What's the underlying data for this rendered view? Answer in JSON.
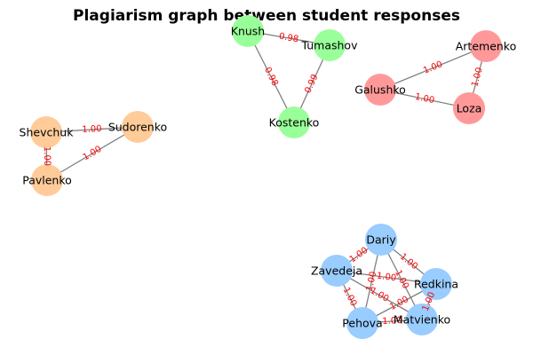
{
  "title": "Plagiarism graph between student responses",
  "groups": [
    {
      "id": "orange",
      "color": "#ffcc99"
    },
    {
      "id": "green",
      "color": "#99ff99"
    },
    {
      "id": "red",
      "color": "#ff9999"
    },
    {
      "id": "blue",
      "color": "#99ccff"
    }
  ],
  "nodes": [
    {
      "id": "Knush",
      "label": "Knush",
      "group": "green"
    },
    {
      "id": "Tumashov",
      "label": "Tumashov",
      "group": "green"
    },
    {
      "id": "Kostenko",
      "label": "Kostenko",
      "group": "green"
    },
    {
      "id": "Artemenko",
      "label": "Artemenko",
      "group": "red"
    },
    {
      "id": "Galushko",
      "label": "Galushko",
      "group": "red"
    },
    {
      "id": "Loza",
      "label": "Loza",
      "group": "red"
    },
    {
      "id": "Shevchuk",
      "label": "Shevchuk",
      "group": "orange"
    },
    {
      "id": "Sudorenko",
      "label": "Sudorenko",
      "group": "orange"
    },
    {
      "id": "Pavlenko",
      "label": "Pavlenko",
      "group": "orange"
    },
    {
      "id": "Dariy",
      "label": "Dariy",
      "group": "blue"
    },
    {
      "id": "Zavedeja",
      "label": "Zavedeja",
      "group": "blue"
    },
    {
      "id": "Redkina",
      "label": "Redkina",
      "group": "blue"
    },
    {
      "id": "Pehova",
      "label": "Pehova",
      "group": "blue"
    },
    {
      "id": "Matvienko",
      "label": "Matvienko",
      "group": "blue"
    }
  ],
  "edges": [
    {
      "source": "Knush",
      "target": "Tumashov",
      "weight": "0.98"
    },
    {
      "source": "Knush",
      "target": "Kostenko",
      "weight": "0.98"
    },
    {
      "source": "Tumashov",
      "target": "Kostenko",
      "weight": "0.99"
    },
    {
      "source": "Galushko",
      "target": "Artemenko",
      "weight": "1.00"
    },
    {
      "source": "Artemenko",
      "target": "Loza",
      "weight": "1.00"
    },
    {
      "source": "Galushko",
      "target": "Loza",
      "weight": "1.00"
    },
    {
      "source": "Shevchuk",
      "target": "Sudorenko",
      "weight": "1.00"
    },
    {
      "source": "Pavlenko",
      "target": "Sudorenko",
      "weight": "1.00"
    },
    {
      "source": "Shevchuk",
      "target": "Pavlenko",
      "weight": "1.00"
    },
    {
      "source": "Dariy",
      "target": "Zavedeja",
      "weight": "1.00"
    },
    {
      "source": "Dariy",
      "target": "Redkina",
      "weight": "1.00"
    },
    {
      "source": "Dariy",
      "target": "Pehova",
      "weight": "1.00"
    },
    {
      "source": "Dariy",
      "target": "Matvienko",
      "weight": "1.00"
    },
    {
      "source": "Zavedeja",
      "target": "Redkina",
      "weight": "1.00"
    },
    {
      "source": "Zavedeja",
      "target": "Pehova",
      "weight": "1.00"
    },
    {
      "source": "Zavedeja",
      "target": "Matvienko",
      "weight": "1.00"
    },
    {
      "source": "Redkina",
      "target": "Pehova",
      "weight": "1.00"
    },
    {
      "source": "Redkina",
      "target": "Matvienko",
      "weight": "1.00"
    },
    {
      "source": "Pehova",
      "target": "Matvienko",
      "weight": "1.00"
    }
  ]
}
